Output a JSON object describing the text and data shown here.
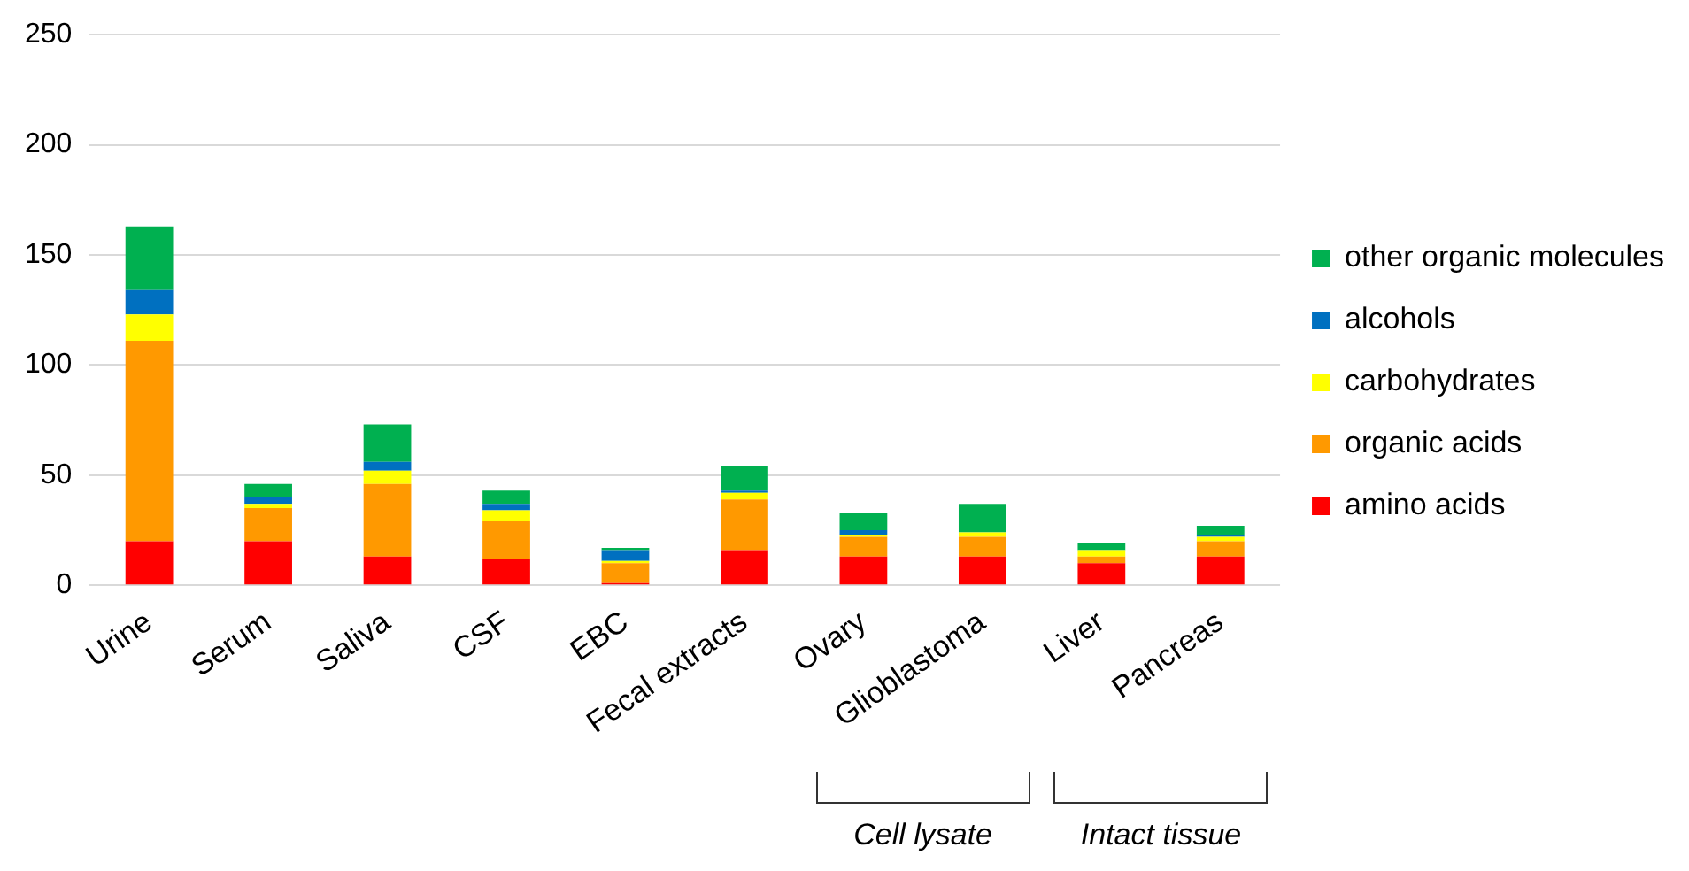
{
  "chart_data": {
    "type": "bar",
    "stacked": true,
    "categories": [
      "Urine",
      "Serum",
      "Saliva",
      "CSF",
      "EBC",
      "Fecal extracts",
      "Ovary",
      "Glioblastoma",
      "Liver",
      "Pancreas"
    ],
    "series": [
      {
        "name": "amino acids",
        "color": "#ff0000",
        "values": [
          20,
          20,
          13,
          12,
          1,
          16,
          13,
          13,
          10,
          13
        ]
      },
      {
        "name": "organic acids",
        "color": "#ff9900",
        "values": [
          91,
          15,
          33,
          17,
          9,
          23,
          9,
          9,
          3,
          7
        ]
      },
      {
        "name": "carbohydrates",
        "color": "#ffff00",
        "values": [
          12,
          2,
          6,
          5,
          1,
          3,
          1,
          2,
          3,
          2
        ]
      },
      {
        "name": "alcohols",
        "color": "#0070c0",
        "values": [
          11,
          3,
          4,
          3,
          5,
          1,
          2,
          0,
          0,
          1
        ]
      },
      {
        "name": "other organic molecules",
        "color": "#00b050",
        "values": [
          29,
          6,
          17,
          6,
          1,
          11,
          8,
          13,
          3,
          4
        ]
      }
    ],
    "ylim": [
      0,
      250
    ],
    "yticks": [
      0,
      50,
      100,
      150,
      200,
      250
    ],
    "grid": "y",
    "legend": "right",
    "annotations": [
      "Cell lysate",
      "Intact tissue"
    ]
  }
}
